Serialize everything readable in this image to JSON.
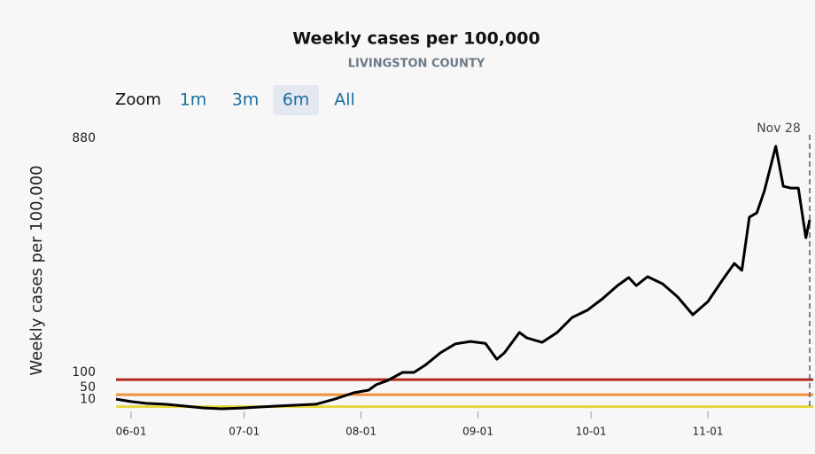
{
  "chart_data": {
    "type": "line",
    "title": "Weekly cases per 100,000",
    "subtitle": "LIVINGSTON COUNTY",
    "y_axis_label": "Weekly cases per 100,000",
    "zoom": {
      "label": "Zoom",
      "options": [
        "1m",
        "3m",
        "6m",
        "All"
      ],
      "selected": "6m"
    },
    "annotation": "Nov 28",
    "x": [
      "05-28",
      "06-01",
      "06-05",
      "06-10",
      "06-15",
      "06-20",
      "06-25",
      "07-01",
      "07-05",
      "07-10",
      "07-15",
      "07-20",
      "07-25",
      "07-30",
      "08-03",
      "08-05",
      "08-08",
      "08-12",
      "08-15",
      "08-18",
      "08-22",
      "08-26",
      "08-30",
      "09-03",
      "09-06",
      "09-08",
      "09-12",
      "09-14",
      "09-18",
      "09-22",
      "09-26",
      "09-30",
      "10-04",
      "10-08",
      "10-11",
      "10-13",
      "10-16",
      "10-20",
      "10-24",
      "10-28",
      "11-01",
      "11-05",
      "11-08",
      "11-10",
      "11-12",
      "11-14",
      "11-16",
      "11-19",
      "11-21",
      "11-23",
      "11-25",
      "11-27",
      "11-28"
    ],
    "series": [
      {
        "name": "Weekly cases per 100,000",
        "color": "#000000",
        "values": [
          35,
          27,
          21,
          18,
          12,
          6,
          3,
          6,
          9,
          12,
          15,
          18,
          35,
          56,
          65,
          83,
          97,
          124,
          124,
          148,
          189,
          219,
          227,
          221,
          168,
          189,
          257,
          239,
          224,
          257,
          307,
          331,
          369,
          413,
          440,
          413,
          443,
          419,
          375,
          316,
          360,
          434,
          487,
          464,
          641,
          656,
          729,
          877,
          744,
          738,
          738,
          573,
          632
        ]
      }
    ],
    "xlim": [
      "05-28",
      "11-28"
    ],
    "xticks": [
      "06-01",
      "07-01",
      "08-01",
      "09-01",
      "10-01",
      "11-01"
    ],
    "ylim": [
      0,
      880
    ],
    "yticks": [
      10,
      50,
      100,
      880
    ],
    "plot_lines": [
      {
        "value": 10,
        "color": "#e8d73a"
      },
      {
        "value": 50,
        "color": "#f0913c"
      },
      {
        "value": 100,
        "color": "#b3261b"
      }
    ]
  }
}
